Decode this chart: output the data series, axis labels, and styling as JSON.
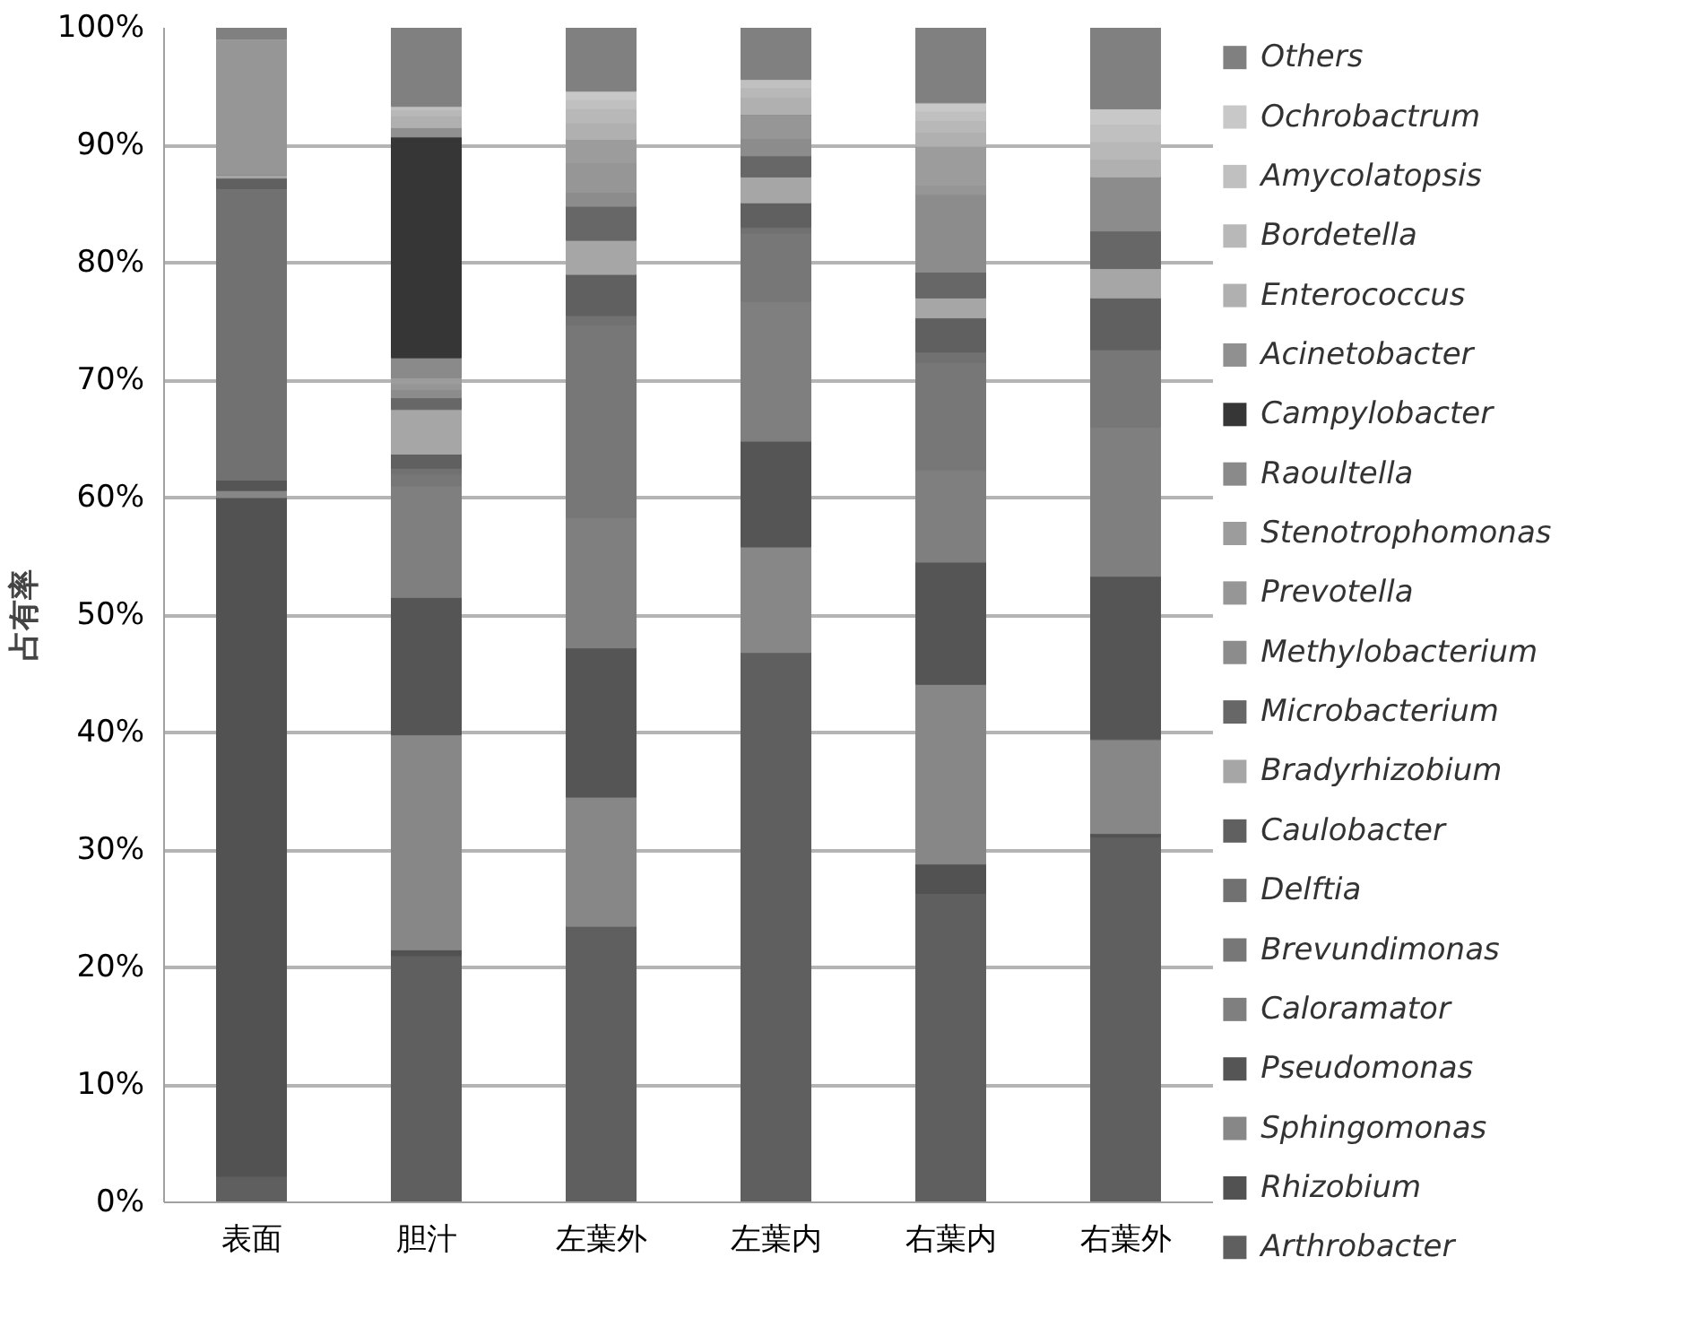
{
  "chart_data": {
    "type": "bar",
    "stacked": true,
    "ylabel": "占有率",
    "categories": [
      "表面",
      "胆汁",
      "左葉外",
      "左葉内",
      "右葉内",
      "右葉外"
    ],
    "ylim": [
      0,
      100
    ],
    "yticks": [
      {
        "value": 0,
        "label": "0%"
      },
      {
        "value": 10,
        "label": "10%"
      },
      {
        "value": 20,
        "label": "20%"
      },
      {
        "value": 30,
        "label": "30%"
      },
      {
        "value": 40,
        "label": "40%"
      },
      {
        "value": 50,
        "label": "50%"
      },
      {
        "value": 60,
        "label": "60%"
      },
      {
        "value": 70,
        "label": "70%"
      },
      {
        "value": 80,
        "label": "80%"
      },
      {
        "value": 90,
        "label": "90%"
      },
      {
        "value": 100,
        "label": "100%"
      }
    ],
    "grid": "y",
    "legend": "right",
    "series": [
      {
        "name": "Arthrobacter",
        "color": "#5f5f5f",
        "values": [
          2.2,
          21.0,
          23.5,
          46.8,
          26.3,
          31.1
        ]
      },
      {
        "name": "Rhizobium",
        "color": "#525252",
        "values": [
          57.8,
          0.5,
          0,
          0,
          2.5,
          0.3
        ]
      },
      {
        "name": "Sphingomonas",
        "color": "#878787",
        "values": [
          0.6,
          18.3,
          11.0,
          9.0,
          15.3,
          8.0
        ]
      },
      {
        "name": "Pseudomonas",
        "color": "#555555",
        "values": [
          0.9,
          11.7,
          12.7,
          9.0,
          10.4,
          13.9
        ]
      },
      {
        "name": "Caloramator",
        "color": "#7f7f7f",
        "values": [
          0,
          9.5,
          11.1,
          11.9,
          7.8,
          12.7
        ]
      },
      {
        "name": "Brevundimonas",
        "color": "#777777",
        "values": [
          0,
          1.0,
          16.4,
          5.8,
          9.2,
          6.6
        ]
      },
      {
        "name": "Delftia",
        "color": "#717171",
        "values": [
          24.8,
          0.5,
          0.8,
          0.5,
          0.9,
          0
        ]
      },
      {
        "name": "Caulobacter",
        "color": "#606060",
        "values": [
          0.9,
          1.2,
          3.5,
          2.1,
          2.9,
          4.4
        ]
      },
      {
        "name": "Bradyrhizobium",
        "color": "#a6a6a6",
        "values": [
          0.3,
          3.8,
          2.9,
          2.2,
          1.7,
          2.5
        ]
      },
      {
        "name": "Microbacterium",
        "color": "#676767",
        "values": [
          0,
          1.0,
          2.9,
          1.8,
          2.2,
          3.2
        ]
      },
      {
        "name": "Methylobacterium",
        "color": "#8c8c8c",
        "values": [
          0,
          0.7,
          1.2,
          1.5,
          6.6,
          4.6
        ]
      },
      {
        "name": "Prevotella",
        "color": "#969696",
        "values": [
          11.5,
          0.5,
          2.5,
          2.0,
          0.8,
          0
        ]
      },
      {
        "name": "Stenotrophomonas",
        "color": "#9c9c9c",
        "values": [
          0,
          0.5,
          2.0,
          0,
          3.3,
          0
        ]
      },
      {
        "name": "Raoultella",
        "color": "#8a8a8a",
        "values": [
          0,
          1.7,
          0,
          0,
          0,
          0
        ]
      },
      {
        "name": "Campylobacter",
        "color": "#363636",
        "values": [
          0,
          18.8,
          0,
          0,
          0,
          0
        ]
      },
      {
        "name": "Acinetobacter",
        "color": "#909090",
        "values": [
          0,
          0.8,
          0,
          0,
          0,
          0
        ]
      },
      {
        "name": "Enterococcus",
        "color": "#b0b0b0",
        "values": [
          0,
          1.0,
          1.4,
          1.5,
          1.2,
          1.5
        ]
      },
      {
        "name": "Bordetella",
        "color": "#b8b8b8",
        "values": [
          0,
          0.5,
          1.2,
          0.8,
          1.0,
          1.5
        ]
      },
      {
        "name": "Amycolatopsis",
        "color": "#c0c0c0",
        "values": [
          0,
          0.3,
          0.8,
          0.7,
          0.8,
          1.5
        ]
      },
      {
        "name": "Ochrobactrum",
        "color": "#c8c8c8",
        "values": [
          0,
          0,
          0.7,
          0,
          0.7,
          1.3
        ]
      },
      {
        "name": "Others",
        "color": "#808080",
        "values": [
          1.0,
          6.7,
          5.4,
          4.4,
          6.4,
          6.9
        ]
      }
    ]
  }
}
